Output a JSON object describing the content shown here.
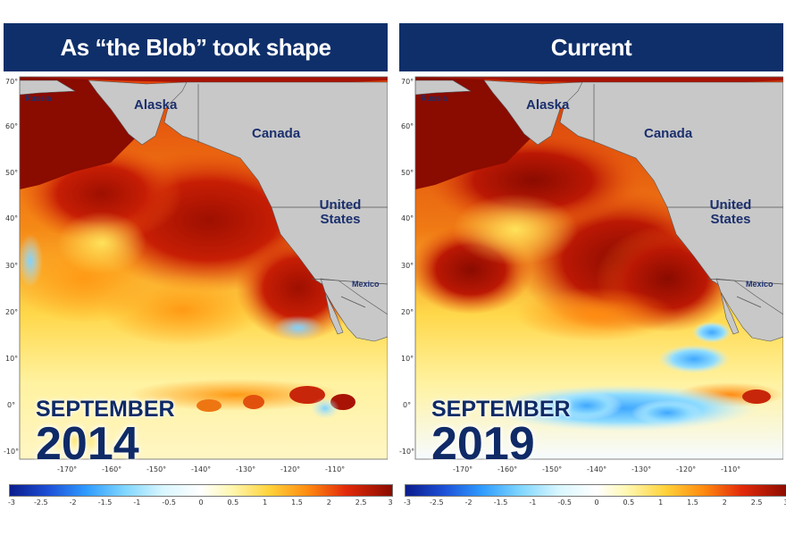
{
  "panels": [
    {
      "title": "As “the Blob” took shape",
      "month": "SEPTEMBER",
      "year": "2014",
      "labels": {
        "russia": "Russia",
        "alaska": "Alaska",
        "canada": "Canada",
        "us": "United States",
        "mexico": "Mexico"
      }
    },
    {
      "title": "Current",
      "month": "SEPTEMBER",
      "year": "2019",
      "labels": {
        "russia": "Russia",
        "alaska": "Alaska",
        "canada": "Canada",
        "us": "United States",
        "mexico": "Mexico"
      }
    }
  ],
  "latitude_ticks": [
    "70°",
    "60°",
    "50°",
    "40°",
    "30°",
    "20°",
    "10°",
    "0°",
    "-10°"
  ],
  "longitude_ticks": [
    "-170°",
    "-160°",
    "-150°",
    "-140°",
    "-130°",
    "-120°",
    "-110°"
  ],
  "colorbar": {
    "ticks": [
      "-3",
      "-2.5",
      "-2",
      "-1.5",
      "-1",
      "-0.5",
      "0",
      "0.5",
      "1",
      "1.5",
      "2",
      "2.5",
      "3"
    ],
    "min": -3,
    "max": 3,
    "colors": [
      "#0b1c8c",
      "#1d4fd6",
      "#2f9bff",
      "#7fd6ff",
      "#d8f6ff",
      "#ffffff",
      "#fff7b0",
      "#ffd23a",
      "#ff8a10",
      "#e22a0a",
      "#8a0b00"
    ]
  },
  "colors": {
    "header": "#0f2f6a",
    "land": "#c8c8c8",
    "label": "#1b2f6d"
  }
}
